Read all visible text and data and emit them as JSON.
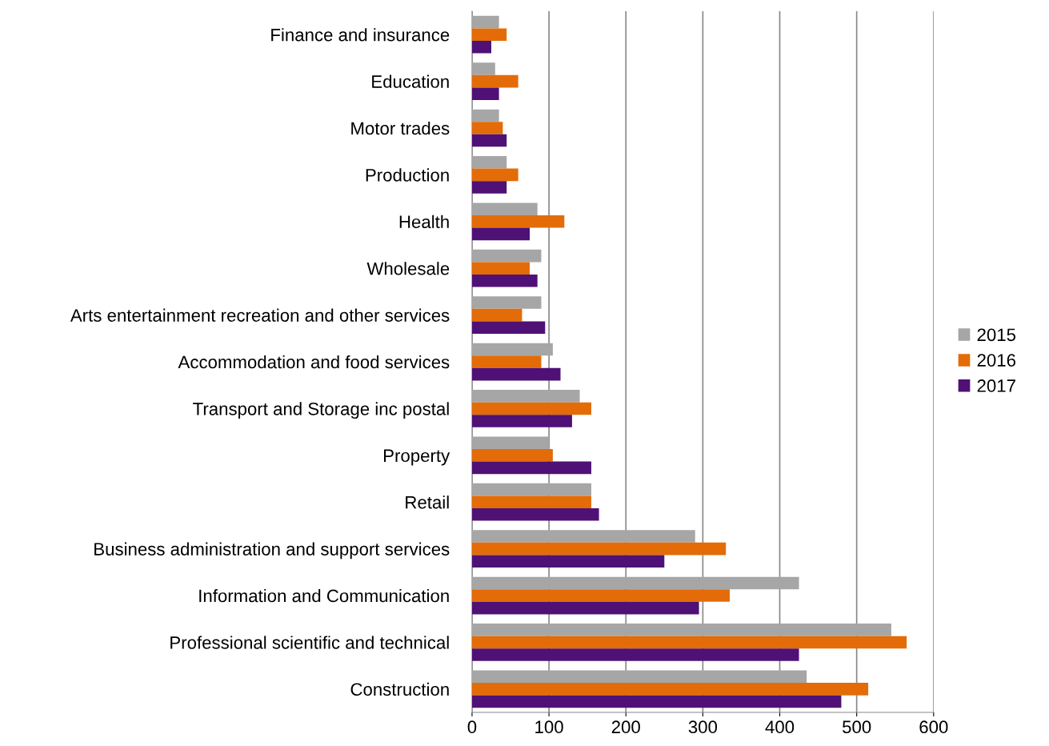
{
  "chart_data": {
    "type": "bar",
    "orientation": "horizontal",
    "categories": [
      "Finance and insurance",
      "Education",
      "Motor trades",
      "Production",
      "Health",
      "Wholesale",
      "Arts entertainment recreation and other services",
      "Accommodation and food services",
      "Transport and Storage inc postal",
      "Property",
      "Retail",
      "Business administration and support services",
      "Information and Communication",
      "Professional scientific and technical",
      "Construction"
    ],
    "series": [
      {
        "name": "2015",
        "color": "#a6a6a6",
        "values": [
          35,
          30,
          35,
          45,
          85,
          90,
          90,
          105,
          140,
          100,
          155,
          290,
          425,
          545,
          435
        ]
      },
      {
        "name": "2016",
        "color": "#e36c09",
        "values": [
          45,
          60,
          40,
          60,
          120,
          75,
          65,
          90,
          155,
          105,
          155,
          330,
          335,
          565,
          515
        ]
      },
      {
        "name": "2017",
        "color": "#4f1175",
        "values": [
          25,
          35,
          45,
          45,
          75,
          85,
          95,
          115,
          130,
          155,
          165,
          250,
          295,
          425,
          480
        ]
      }
    ],
    "xlim": [
      0,
      600
    ],
    "xticks": [
      0,
      100,
      200,
      300,
      400,
      500,
      600
    ],
    "grid": "x",
    "legend": "right"
  }
}
